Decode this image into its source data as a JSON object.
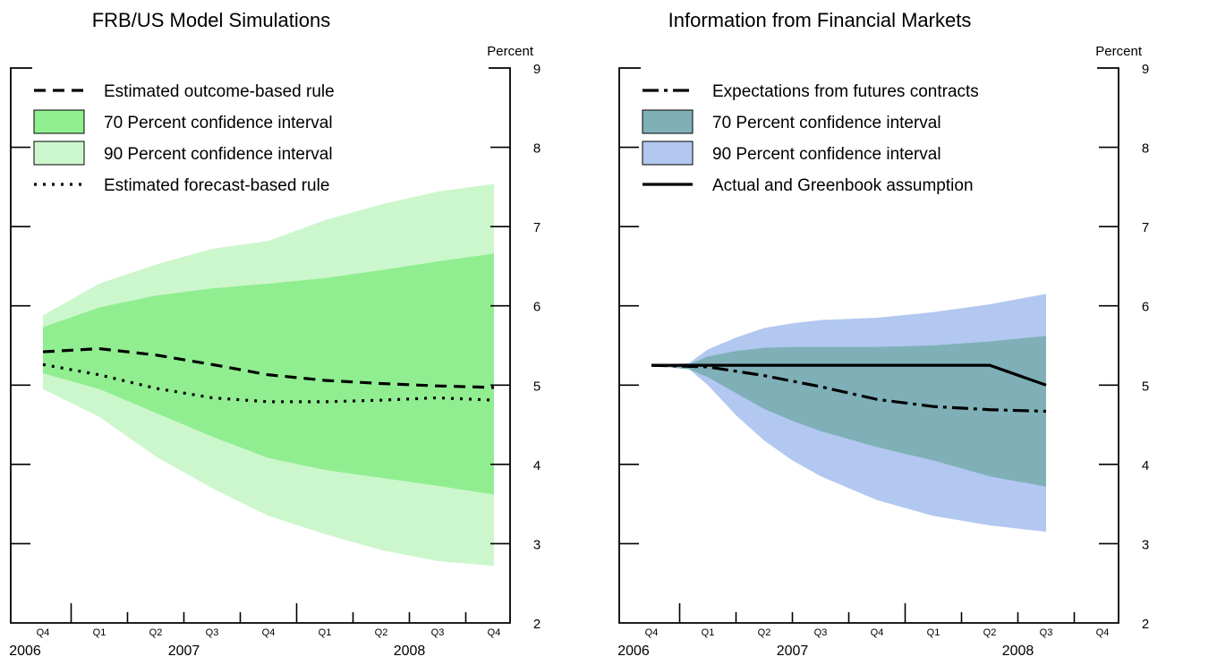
{
  "chart_data": [
    {
      "type": "area",
      "title": "FRB/US Model Simulations",
      "ylabel": "Percent",
      "ylim": [
        2,
        9
      ],
      "yticks": [
        2,
        3,
        4,
        5,
        6,
        7,
        8,
        9
      ],
      "x_quarters": [
        "Q4",
        "Q1",
        "Q2",
        "Q3",
        "Q4",
        "Q1",
        "Q2",
        "Q3",
        "Q4"
      ],
      "x_years": [
        {
          "label": "2006",
          "at_quarter": 0
        },
        {
          "label": "2007",
          "at_quarter": 2.5
        },
        {
          "label": "2008",
          "at_quarter": 6.5
        }
      ],
      "legend_position": "top-left",
      "legend": [
        {
          "label": "Estimated outcome-based rule",
          "style": "dashed"
        },
        {
          "label": "70 Percent confidence interval",
          "style": "fill",
          "color": "#90ee90"
        },
        {
          "label": "90 Percent confidence interval",
          "style": "fill",
          "color": "#ccf7cc"
        },
        {
          "label": "Estimated forecast-based rule",
          "style": "dotted"
        }
      ],
      "x": [
        0,
        1,
        2,
        3,
        4,
        5,
        6,
        7,
        8
      ],
      "bands": [
        {
          "name": "90 Percent confidence interval",
          "color": "#ccf7cc",
          "upper": [
            5.88,
            6.28,
            6.52,
            6.72,
            6.82,
            7.08,
            7.28,
            7.44,
            7.54
          ],
          "lower": [
            4.95,
            4.6,
            4.1,
            3.7,
            3.35,
            3.12,
            2.92,
            2.78,
            2.72
          ]
        },
        {
          "name": "70 Percent confidence interval",
          "color": "#90ee90",
          "upper": [
            5.73,
            5.98,
            6.13,
            6.22,
            6.28,
            6.35,
            6.45,
            6.56,
            6.66
          ]
        },
        {
          "name": "70 Percent confidence interval lower",
          "color": "#90ee90",
          "lower": [
            5.15,
            4.95,
            4.65,
            4.35,
            4.08,
            3.93,
            3.83,
            3.73,
            3.62
          ]
        }
      ],
      "series": [
        {
          "name": "Estimated outcome-based rule",
          "style": "dashed",
          "values": [
            5.42,
            5.46,
            5.38,
            5.26,
            5.13,
            5.06,
            5.02,
            4.99,
            4.97
          ]
        },
        {
          "name": "Estimated forecast-based rule",
          "style": "dotted",
          "values": [
            5.26,
            5.13,
            4.96,
            4.84,
            4.79,
            4.79,
            4.81,
            4.84,
            4.81
          ]
        }
      ]
    },
    {
      "type": "area",
      "title": "Information from Financial Markets",
      "ylabel": "Percent",
      "ylim": [
        2,
        9
      ],
      "yticks": [
        2,
        3,
        4,
        5,
        6,
        7,
        8,
        9
      ],
      "x_quarters": [
        "Q4",
        "Q1",
        "Q2",
        "Q3",
        "Q4",
        "Q1",
        "Q2",
        "Q3",
        "Q4"
      ],
      "x_years": [
        {
          "label": "2006",
          "at_quarter": 0
        },
        {
          "label": "2007",
          "at_quarter": 2.5
        },
        {
          "label": "2008",
          "at_quarter": 6.5
        }
      ],
      "legend_position": "top-left",
      "legend": [
        {
          "label": "Expectations from futures contracts",
          "style": "dashdot"
        },
        {
          "label": "70 Percent confidence interval",
          "style": "fill",
          "color": "#7fb0b8"
        },
        {
          "label": "90 Percent confidence interval",
          "style": "fill",
          "color": "#b2c8f0"
        },
        {
          "label": "Actual and Greenbook assumption",
          "style": "solid"
        }
      ],
      "x": [
        -0.33,
        0,
        0.67,
        1,
        1.5,
        2,
        2.5,
        3,
        4,
        5,
        6,
        7
      ],
      "bands": [
        {
          "name": "90 Percent confidence interval",
          "color": "#b2c8f0",
          "upper": [
            5.25,
            5.25,
            5.28,
            5.45,
            5.6,
            5.72,
            5.78,
            5.82,
            5.85,
            5.92,
            6.02,
            6.15
          ],
          "lower": [
            5.25,
            5.25,
            5.2,
            5.0,
            4.62,
            4.3,
            4.05,
            3.85,
            3.55,
            3.35,
            3.23,
            3.15
          ]
        },
        {
          "name": "70 Percent confidence interval",
          "color": "#7fb0b8",
          "upper": [
            5.25,
            5.25,
            5.26,
            5.36,
            5.43,
            5.47,
            5.48,
            5.48,
            5.48,
            5.5,
            5.55,
            5.62
          ],
          "lower": [
            5.25,
            5.25,
            5.2,
            5.1,
            4.9,
            4.7,
            4.55,
            4.42,
            4.22,
            4.05,
            3.85,
            3.72
          ]
        }
      ],
      "series": [
        {
          "name": "Expectations from futures contracts",
          "style": "dashdot",
          "x": [
            0,
            1,
            2,
            3,
            4,
            5,
            6,
            7
          ],
          "values": [
            5.25,
            5.23,
            5.12,
            4.98,
            4.82,
            4.73,
            4.69,
            4.67
          ]
        },
        {
          "name": "Actual and Greenbook assumption",
          "style": "solid",
          "x": [
            0,
            1,
            2,
            3,
            4,
            5,
            6,
            7
          ],
          "values": [
            5.25,
            5.25,
            5.25,
            5.25,
            5.25,
            5.25,
            5.25,
            5.0
          ]
        }
      ]
    }
  ]
}
